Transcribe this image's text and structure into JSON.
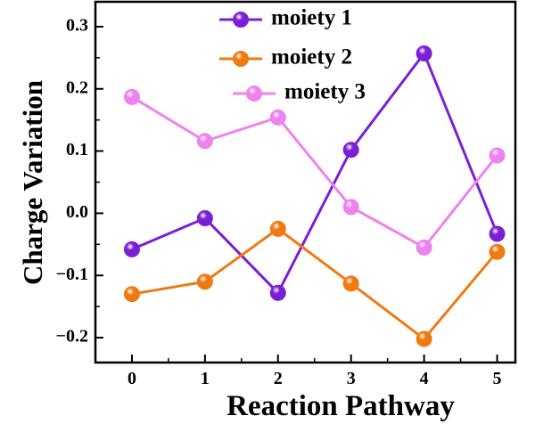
{
  "chart_data": {
    "type": "line",
    "xlabel": "Reaction Pathway",
    "ylabel": "Charge Variation",
    "x": [
      0,
      1,
      2,
      3,
      4,
      5
    ],
    "xticks": [
      "0",
      "1",
      "2",
      "3",
      "4",
      "5"
    ],
    "xlim": [
      -0.5,
      5.25
    ],
    "ylim": [
      -0.24,
      0.34
    ],
    "yticks": [
      "−0.2",
      "−0.1",
      "0.0",
      "0.1",
      "0.2",
      "0.3"
    ],
    "ytick_values": [
      -0.2,
      -0.1,
      0.0,
      0.1,
      0.2,
      0.3
    ],
    "legend_position": "top-center",
    "grid": false,
    "series": [
      {
        "name": "moiety 1",
        "color": "#7B1FD6",
        "values": [
          -0.058,
          -0.008,
          -0.128,
          0.102,
          0.257,
          -0.033
        ]
      },
      {
        "name": "moiety 2",
        "color": "#F07A12",
        "values": [
          -0.13,
          -0.11,
          -0.025,
          -0.113,
          -0.202,
          -0.062
        ]
      },
      {
        "name": "moiety 3",
        "color": "#EE82EE",
        "values": [
          0.187,
          0.116,
          0.154,
          0.01,
          -0.055,
          0.093
        ]
      }
    ]
  }
}
